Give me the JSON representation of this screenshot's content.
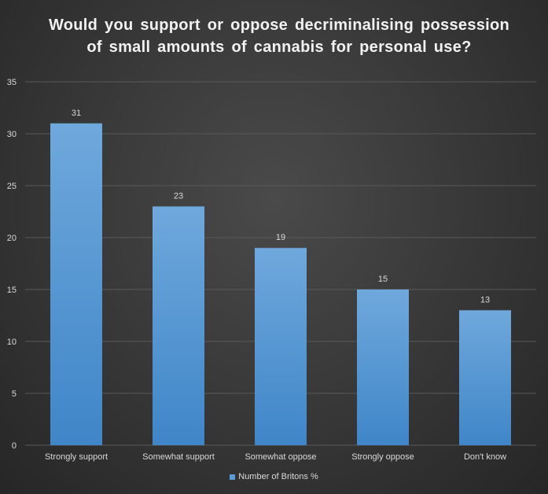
{
  "chart_data": {
    "type": "bar",
    "title": "Would you support or oppose decriminalising possession of small amounts of cannabis for personal use?",
    "categories": [
      "Strongly support",
      "Somewhat support",
      "Somewhat oppose",
      "Strongly oppose",
      "Don't know"
    ],
    "series": [
      {
        "name": "Number of Britons %",
        "values": [
          31,
          23,
          19,
          15,
          13
        ]
      }
    ],
    "ylim": [
      0,
      35
    ],
    "yticks": [
      "0",
      "5",
      "10",
      "15",
      "20",
      "25",
      "30",
      "35"
    ],
    "data_labels": [
      "31",
      "23",
      "19",
      "15",
      "13"
    ],
    "grid": true,
    "legend": "bottom",
    "bar_color": "#5b9bd5",
    "gridline_color": "#595959",
    "text_color": "#d9d9d9",
    "title_color": "#f2f2f2"
  }
}
